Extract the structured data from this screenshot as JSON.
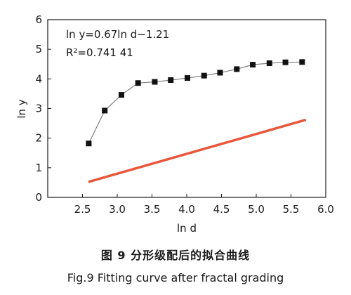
{
  "chart_data": {
    "type": "scatter",
    "xlabel": "ln d",
    "ylabel": "ln y",
    "xlim": [
      2.0,
      6.0
    ],
    "ylim": [
      0,
      6
    ],
    "xticks": [
      "2.5",
      "3.0",
      "3.5",
      "4.0",
      "4.5",
      "5.0",
      "5.5",
      "6.0"
    ],
    "yticks": [
      "0",
      "1",
      "2",
      "3",
      "4",
      "5",
      "6"
    ],
    "x": [
      2.59,
      2.82,
      3.06,
      3.3,
      3.54,
      3.77,
      4.01,
      4.25,
      4.48,
      4.72,
      4.95,
      5.19,
      5.42,
      5.66
    ],
    "y": [
      1.82,
      2.93,
      3.46,
      3.86,
      3.9,
      3.96,
      4.03,
      4.11,
      4.21,
      4.33,
      4.48,
      4.53,
      4.56,
      4.57
    ],
    "fit": {
      "slope": 0.67,
      "intercept": -1.21,
      "x_range": [
        2.6,
        5.7
      ]
    },
    "annotations": {
      "equation": "ln y=0.67ln d−1.21",
      "r2_label": "R²=0.741 41"
    },
    "colors": {
      "fit_line": "#e8563b",
      "markers": "#111111",
      "connector": "#777777"
    }
  },
  "caption": {
    "cn": "图 9   分形级配后的拟合曲线",
    "en": "Fig.9   Fitting curve after fractal grading"
  }
}
